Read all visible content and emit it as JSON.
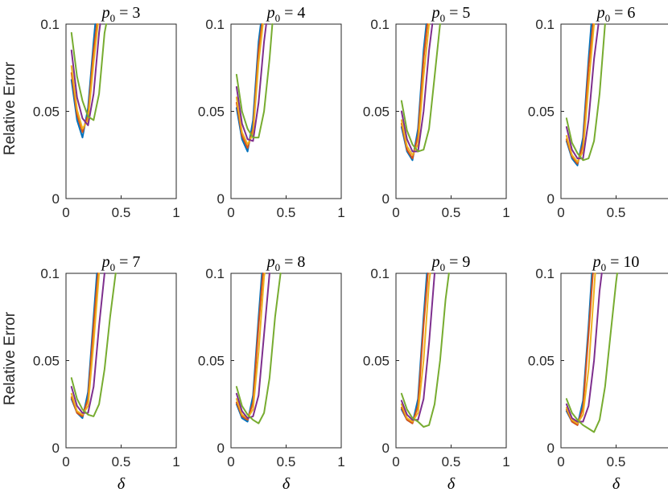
{
  "chart_data": {
    "type": "line",
    "xlabel": "δ",
    "ylabel": "Relative Error",
    "xlim": [
      0,
      1
    ],
    "ylim": [
      0,
      0.1
    ],
    "xticks": [
      "0",
      "0.5",
      "1"
    ],
    "yticks": [
      "0",
      "0.05",
      "0.1"
    ],
    "series_colors": [
      "#0072BD",
      "#D95319",
      "#EDB120",
      "#7E2F8E",
      "#77AC30"
    ],
    "panels": [
      {
        "title_var": "p",
        "title_sub": "0",
        "title_value": "3",
        "series": [
          {
            "x": [
              0.05,
              0.1,
              0.15,
              0.2,
              0.25,
              0.265
            ],
            "y": [
              0.068,
              0.045,
              0.035,
              0.052,
              0.09,
              0.1
            ]
          },
          {
            "x": [
              0.05,
              0.1,
              0.15,
              0.2,
              0.25,
              0.28
            ],
            "y": [
              0.072,
              0.048,
              0.038,
              0.048,
              0.085,
              0.1
            ]
          },
          {
            "x": [
              0.05,
              0.1,
              0.15,
              0.2,
              0.25,
              0.29
            ],
            "y": [
              0.076,
              0.051,
              0.04,
              0.045,
              0.078,
              0.1
            ]
          },
          {
            "x": [
              0.05,
              0.1,
              0.15,
              0.2,
              0.25,
              0.3,
              0.31
            ],
            "y": [
              0.085,
              0.058,
              0.046,
              0.042,
              0.06,
              0.095,
              0.1
            ]
          },
          {
            "x": [
              0.05,
              0.1,
              0.15,
              0.2,
              0.25,
              0.3,
              0.35,
              0.365
            ],
            "y": [
              0.095,
              0.07,
              0.056,
              0.047,
              0.045,
              0.06,
              0.095,
              0.1
            ]
          }
        ]
      },
      {
        "title_var": "p",
        "title_sub": "0",
        "title_value": "4",
        "series": [
          {
            "x": [
              0.05,
              0.1,
              0.15,
              0.2,
              0.25,
              0.27
            ],
            "y": [
              0.052,
              0.034,
              0.027,
              0.045,
              0.09,
              0.1
            ]
          },
          {
            "x": [
              0.05,
              0.1,
              0.15,
              0.2,
              0.25,
              0.28
            ],
            "y": [
              0.055,
              0.036,
              0.029,
              0.04,
              0.085,
              0.1
            ]
          },
          {
            "x": [
              0.05,
              0.1,
              0.15,
              0.2,
              0.25,
              0.29
            ],
            "y": [
              0.058,
              0.038,
              0.031,
              0.037,
              0.078,
              0.1
            ]
          },
          {
            "x": [
              0.05,
              0.1,
              0.15,
              0.2,
              0.25,
              0.3,
              0.32
            ],
            "y": [
              0.064,
              0.043,
              0.034,
              0.033,
              0.055,
              0.09,
              0.1
            ]
          },
          {
            "x": [
              0.05,
              0.1,
              0.15,
              0.2,
              0.25,
              0.3,
              0.35,
              0.375
            ],
            "y": [
              0.071,
              0.05,
              0.04,
              0.035,
              0.035,
              0.05,
              0.08,
              0.1
            ]
          }
        ]
      },
      {
        "title_var": "p",
        "title_sub": "0",
        "title_value": "5",
        "series": [
          {
            "x": [
              0.05,
              0.1,
              0.15,
              0.2,
              0.25,
              0.275
            ],
            "y": [
              0.041,
              0.027,
              0.022,
              0.04,
              0.085,
              0.1
            ]
          },
          {
            "x": [
              0.05,
              0.1,
              0.15,
              0.2,
              0.25,
              0.285
            ],
            "y": [
              0.043,
              0.028,
              0.023,
              0.036,
              0.08,
              0.1
            ]
          },
          {
            "x": [
              0.05,
              0.1,
              0.15,
              0.2,
              0.25,
              0.3
            ],
            "y": [
              0.045,
              0.03,
              0.025,
              0.031,
              0.07,
              0.1
            ]
          },
          {
            "x": [
              0.05,
              0.1,
              0.15,
              0.2,
              0.25,
              0.3,
              0.33
            ],
            "y": [
              0.05,
              0.034,
              0.027,
              0.027,
              0.05,
              0.085,
              0.1
            ]
          },
          {
            "x": [
              0.05,
              0.1,
              0.15,
              0.2,
              0.25,
              0.3,
              0.35,
              0.4
            ],
            "y": [
              0.056,
              0.039,
              0.031,
              0.027,
              0.028,
              0.04,
              0.07,
              0.1
            ]
          }
        ]
      },
      {
        "title_var": "p",
        "title_sub": "0",
        "title_value": "6",
        "series": [
          {
            "x": [
              0.05,
              0.1,
              0.15,
              0.2,
              0.25,
              0.275
            ],
            "y": [
              0.033,
              0.023,
              0.019,
              0.035,
              0.08,
              0.1
            ]
          },
          {
            "x": [
              0.05,
              0.1,
              0.15,
              0.2,
              0.25,
              0.29
            ],
            "y": [
              0.034,
              0.024,
              0.02,
              0.031,
              0.075,
              0.1
            ]
          },
          {
            "x": [
              0.05,
              0.1,
              0.15,
              0.2,
              0.25,
              0.3
            ],
            "y": [
              0.036,
              0.025,
              0.021,
              0.027,
              0.065,
              0.1
            ]
          },
          {
            "x": [
              0.05,
              0.1,
              0.15,
              0.2,
              0.25,
              0.3,
              0.34
            ],
            "y": [
              0.041,
              0.028,
              0.023,
              0.023,
              0.045,
              0.08,
              0.1
            ]
          },
          {
            "x": [
              0.05,
              0.1,
              0.15,
              0.2,
              0.25,
              0.3,
              0.35,
              0.4
            ],
            "y": [
              0.046,
              0.032,
              0.026,
              0.022,
              0.023,
              0.033,
              0.06,
              0.1
            ]
          }
        ]
      },
      {
        "title_var": "p",
        "title_sub": "0",
        "title_value": "7",
        "series": [
          {
            "x": [
              0.05,
              0.1,
              0.15,
              0.2,
              0.25,
              0.28
            ],
            "y": [
              0.028,
              0.02,
              0.017,
              0.032,
              0.075,
              0.1
            ]
          },
          {
            "x": [
              0.05,
              0.1,
              0.15,
              0.2,
              0.25,
              0.29
            ],
            "y": [
              0.029,
              0.02,
              0.018,
              0.028,
              0.07,
              0.1
            ]
          },
          {
            "x": [
              0.05,
              0.1,
              0.15,
              0.2,
              0.25,
              0.3
            ],
            "y": [
              0.031,
              0.021,
              0.019,
              0.024,
              0.06,
              0.1
            ]
          },
          {
            "x": [
              0.05,
              0.1,
              0.15,
              0.2,
              0.25,
              0.3,
              0.35
            ],
            "y": [
              0.035,
              0.024,
              0.02,
              0.02,
              0.035,
              0.07,
              0.1
            ]
          },
          {
            "x": [
              0.05,
              0.1,
              0.15,
              0.2,
              0.25,
              0.3,
              0.35,
              0.4,
              0.45
            ],
            "y": [
              0.04,
              0.028,
              0.022,
              0.019,
              0.018,
              0.025,
              0.045,
              0.075,
              0.1
            ]
          }
        ]
      },
      {
        "title_var": "p",
        "title_sub": "0",
        "title_value": "8",
        "series": [
          {
            "x": [
              0.05,
              0.1,
              0.15,
              0.2,
              0.25,
              0.28
            ],
            "y": [
              0.025,
              0.017,
              0.015,
              0.03,
              0.075,
              0.1
            ]
          },
          {
            "x": [
              0.05,
              0.1,
              0.15,
              0.2,
              0.25,
              0.29
            ],
            "y": [
              0.026,
              0.018,
              0.016,
              0.026,
              0.07,
              0.1
            ]
          },
          {
            "x": [
              0.05,
              0.1,
              0.15,
              0.2,
              0.25,
              0.3,
              0.305
            ],
            "y": [
              0.028,
              0.019,
              0.017,
              0.022,
              0.055,
              0.098,
              0.1
            ]
          },
          {
            "x": [
              0.05,
              0.1,
              0.15,
              0.2,
              0.25,
              0.3,
              0.35
            ],
            "y": [
              0.031,
              0.021,
              0.017,
              0.018,
              0.03,
              0.065,
              0.1
            ]
          },
          {
            "x": [
              0.05,
              0.1,
              0.15,
              0.2,
              0.25,
              0.3,
              0.35,
              0.4,
              0.45
            ],
            "y": [
              0.035,
              0.024,
              0.019,
              0.016,
              0.014,
              0.02,
              0.04,
              0.075,
              0.1
            ]
          }
        ]
      },
      {
        "title_var": "p",
        "title_sub": "0",
        "title_value": "9",
        "series": [
          {
            "x": [
              0.05,
              0.1,
              0.15,
              0.2,
              0.25,
              0.28
            ],
            "y": [
              0.022,
              0.016,
              0.014,
              0.028,
              0.075,
              0.1
            ]
          },
          {
            "x": [
              0.05,
              0.1,
              0.15,
              0.2,
              0.25,
              0.29
            ],
            "y": [
              0.023,
              0.016,
              0.014,
              0.024,
              0.07,
              0.1
            ]
          },
          {
            "x": [
              0.05,
              0.1,
              0.15,
              0.2,
              0.25,
              0.3,
              0.31
            ],
            "y": [
              0.025,
              0.017,
              0.015,
              0.02,
              0.05,
              0.095,
              0.1
            ]
          },
          {
            "x": [
              0.05,
              0.1,
              0.15,
              0.2,
              0.25,
              0.3,
              0.35
            ],
            "y": [
              0.027,
              0.019,
              0.016,
              0.016,
              0.028,
              0.06,
              0.1
            ]
          },
          {
            "x": [
              0.05,
              0.1,
              0.15,
              0.2,
              0.25,
              0.3,
              0.35,
              0.4,
              0.45,
              0.48
            ],
            "y": [
              0.031,
              0.022,
              0.017,
              0.015,
              0.012,
              0.013,
              0.025,
              0.05,
              0.085,
              0.1
            ]
          }
        ]
      },
      {
        "title_var": "p",
        "title_sub": "0",
        "title_value": "10",
        "series": [
          {
            "x": [
              0.05,
              0.1,
              0.15,
              0.2,
              0.25,
              0.28
            ],
            "y": [
              0.021,
              0.015,
              0.013,
              0.027,
              0.07,
              0.1
            ]
          },
          {
            "x": [
              0.05,
              0.1,
              0.15,
              0.2,
              0.25,
              0.29
            ],
            "y": [
              0.022,
              0.015,
              0.013,
              0.023,
              0.065,
              0.1
            ]
          },
          {
            "x": [
              0.05,
              0.1,
              0.15,
              0.2,
              0.25,
              0.3,
              0.31
            ],
            "y": [
              0.023,
              0.016,
              0.014,
              0.019,
              0.045,
              0.09,
              0.1
            ]
          },
          {
            "x": [
              0.05,
              0.1,
              0.15,
              0.2,
              0.25,
              0.3,
              0.35,
              0.37
            ],
            "y": [
              0.025,
              0.017,
              0.015,
              0.015,
              0.024,
              0.05,
              0.09,
              0.1
            ]
          },
          {
            "x": [
              0.05,
              0.1,
              0.15,
              0.2,
              0.25,
              0.3,
              0.35,
              0.4,
              0.45,
              0.5,
              0.51
            ],
            "y": [
              0.028,
              0.02,
              0.016,
              0.013,
              0.011,
              0.009,
              0.016,
              0.035,
              0.065,
              0.095,
              0.1
            ]
          }
        ]
      }
    ]
  }
}
